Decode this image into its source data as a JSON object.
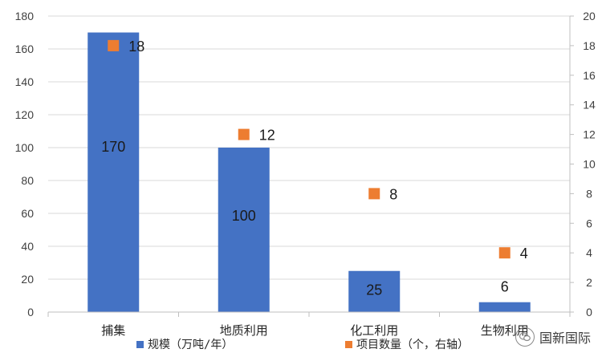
{
  "chart_data": {
    "type": "bar",
    "categories": [
      "捕集",
      "地质利用",
      "化工利用",
      "生物利用"
    ],
    "series": [
      {
        "name": "规模（万吨/年）",
        "type": "bar",
        "axis": "left",
        "values": [
          170,
          100,
          25,
          6
        ],
        "color": "#4472C4"
      },
      {
        "name": "项目数量（个，右轴）",
        "type": "marker",
        "axis": "right",
        "values": [
          18,
          12,
          8,
          4
        ],
        "color": "#ED7D31"
      }
    ],
    "ylim_left": [
      0,
      180
    ],
    "yticks_left": [
      0,
      20,
      40,
      60,
      80,
      100,
      120,
      140,
      160,
      180
    ],
    "ylim_right": [
      0,
      20
    ],
    "yticks_right": [
      0,
      2,
      4,
      6,
      8,
      10,
      12,
      14,
      16,
      18,
      20
    ],
    "data_labels": true,
    "grid": true,
    "legend_position": "bottom"
  },
  "watermark": {
    "text": "国新国际",
    "icon": "wechat-icon"
  }
}
